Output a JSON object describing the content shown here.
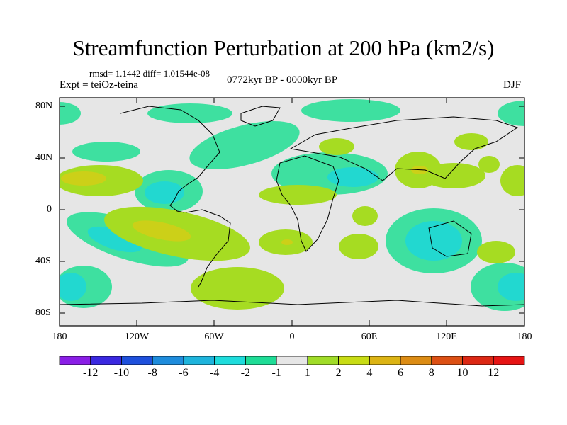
{
  "title": "Streamfunction Perturbation at 200 hPa (km2/s)",
  "stats": "rmsd= 1.1442  diff= 1.01544e-08",
  "experiment": "Expt = teiOz-teina",
  "period": "0772kyr BP - 0000kyr BP",
  "season": "DJF",
  "y_ticks": [
    "80N",
    "40N",
    "0",
    "40S",
    "80S"
  ],
  "x_ticks": [
    "180",
    "120W",
    "60W",
    "0",
    "60E",
    "120E",
    "180"
  ],
  "colorbar": {
    "labels": [
      "-12",
      "-10",
      "-8",
      "-6",
      "-4",
      "-2",
      "-1",
      "1",
      "2",
      "4",
      "6",
      "8",
      "10",
      "12"
    ],
    "colors": [
      "#8a1ee6",
      "#3a28e0",
      "#1e50dc",
      "#1e8cdc",
      "#1eb4dc",
      "#1edcdc",
      "#1edc96",
      "#e6e6e6",
      "#a0dc28",
      "#c8dc14",
      "#dcb414",
      "#dc8c14",
      "#dc5014",
      "#dc2814",
      "#e61414"
    ]
  },
  "palette": {
    "neutral": "#e6e6e6",
    "c_neg1": "#3ee0a0",
    "c_neg2": "#22d8d0",
    "c_pos1": "#a6dc22",
    "c_pos2": "#ccd018"
  }
}
